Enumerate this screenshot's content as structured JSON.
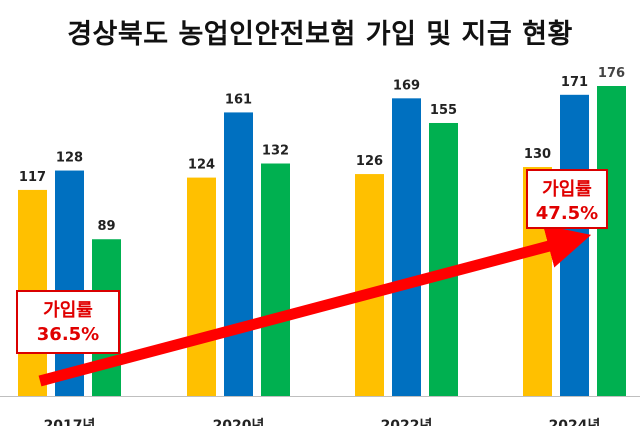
{
  "title": "경상북도 농업인안전보험 가입 및 지급 현황",
  "chart_data": {
    "type": "bar",
    "title": "경상북도 농업인안전보험 가입 및 지급 현황",
    "categories": [
      "2017년",
      "2020년",
      "2022년",
      "2024년"
    ],
    "series": [
      {
        "values": [
          117,
          124,
          126,
          130
        ],
        "color": "#FFC000"
      },
      {
        "values": [
          128,
          161,
          169,
          171
        ],
        "color": "#0070C0"
      },
      {
        "values": [
          89,
          132,
          155,
          176
        ],
        "color": "#00B050"
      }
    ],
    "ylim": [
      0,
      176
    ],
    "annotations": [
      {
        "label": "가입률",
        "value": "36.5%",
        "category": "2017년"
      },
      {
        "label": "가입률",
        "value": "47.5%",
        "category": "2024년"
      }
    ],
    "trend_arrow_color": "#FF0000"
  }
}
